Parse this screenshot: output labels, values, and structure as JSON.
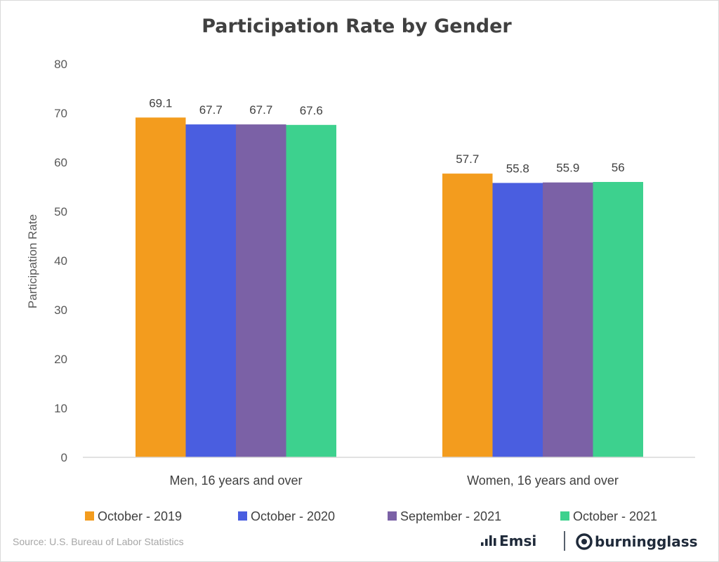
{
  "chart_data": {
    "type": "bar",
    "title": "Participation Rate by Gender",
    "ylabel": "Participation Rate",
    "xlabel": "",
    "ylim": [
      0,
      80
    ],
    "yticks": [
      "0",
      "10",
      "20",
      "30",
      "40",
      "50",
      "60",
      "70",
      "80"
    ],
    "grid": false,
    "legend_position": "bottom",
    "categories": [
      "Men, 16 years and over",
      "Women, 16 years and over"
    ],
    "series": [
      {
        "name": "October - 2019",
        "color": "#F39C1E",
        "values": [
          69.1,
          57.7
        ],
        "labels": [
          "69.1",
          "57.7"
        ]
      },
      {
        "name": "October - 2020",
        "color": "#4A5EE0",
        "values": [
          67.7,
          55.8
        ],
        "labels": [
          "67.7",
          "55.8"
        ]
      },
      {
        "name": "September - 2021",
        "color": "#7B61A6",
        "values": [
          67.7,
          55.9
        ],
        "labels": [
          "67.7",
          "55.9"
        ]
      },
      {
        "name": "October - 2021",
        "color": "#3DD18E",
        "values": [
          67.6,
          56
        ],
        "labels": [
          "67.6",
          "56"
        ]
      }
    ]
  },
  "footer": {
    "source": "Source:  U.S. Bureau of Labor Statistics",
    "brand_left": "Emsi",
    "brand_right": "burningglass"
  },
  "colors": {
    "axis": "#d9d9d9",
    "text": "#404040",
    "brand": "#1f2a3a"
  }
}
